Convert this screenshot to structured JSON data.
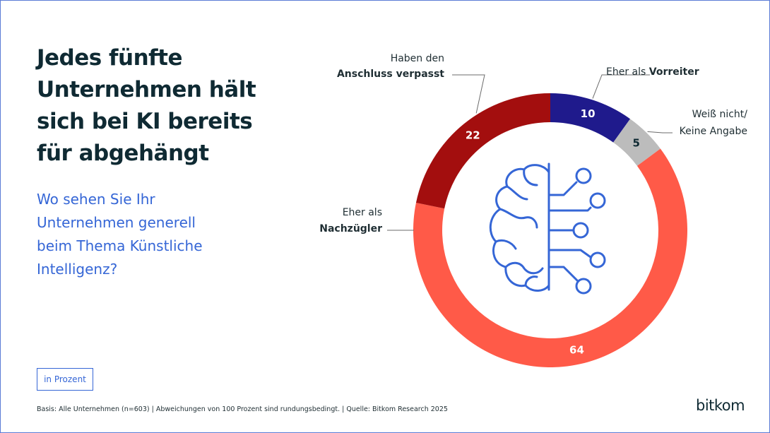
{
  "title_lines": [
    "Jedes fünfte",
    "Unternehmen hält",
    "sich bei KI bereits",
    "für abgehängt"
  ],
  "question_lines": [
    "Wo sehen Sie Ihr",
    "Unternehmen generell",
    "beim Thema Künstliche",
    "Intelligenz?"
  ],
  "unit_label": "in Prozent",
  "footnote": "Basis: Alle Unternehmen (n=603) | Abweichungen von 100 Prozent sind rundungsbedingt. | Quelle: Bitkom Research 2025",
  "brand": "bitkom",
  "colors": {
    "title": "#0f2a33",
    "accent": "#3566d6",
    "vorreiter": "#1f1a8c",
    "weiss_nicht": "#bcbcbc",
    "nachzuegler": "#ff5a48",
    "verpasst": "#a30e0e"
  },
  "chart_data": {
    "type": "pie",
    "variant": "donut",
    "center_icon": "brain-circuit-icon",
    "slices": [
      {
        "key": "vorreiter",
        "label_plain": "Eher als ",
        "label_bold": "Vorreiter",
        "value": 10,
        "value_text": "10"
      },
      {
        "key": "weiss_nicht",
        "label_line1": "Weiß nicht/",
        "label_line2": "Keine Angabe",
        "value": 5,
        "value_text": "5"
      },
      {
        "key": "nachzuegler",
        "label_line1": "Eher als",
        "label_bold": "Nachzügler",
        "value": 64,
        "value_text": "64"
      },
      {
        "key": "verpasst",
        "label_line1": "Haben den",
        "label_bold": "Anschluss verpasst",
        "value": 22,
        "value_text": "22"
      }
    ]
  }
}
